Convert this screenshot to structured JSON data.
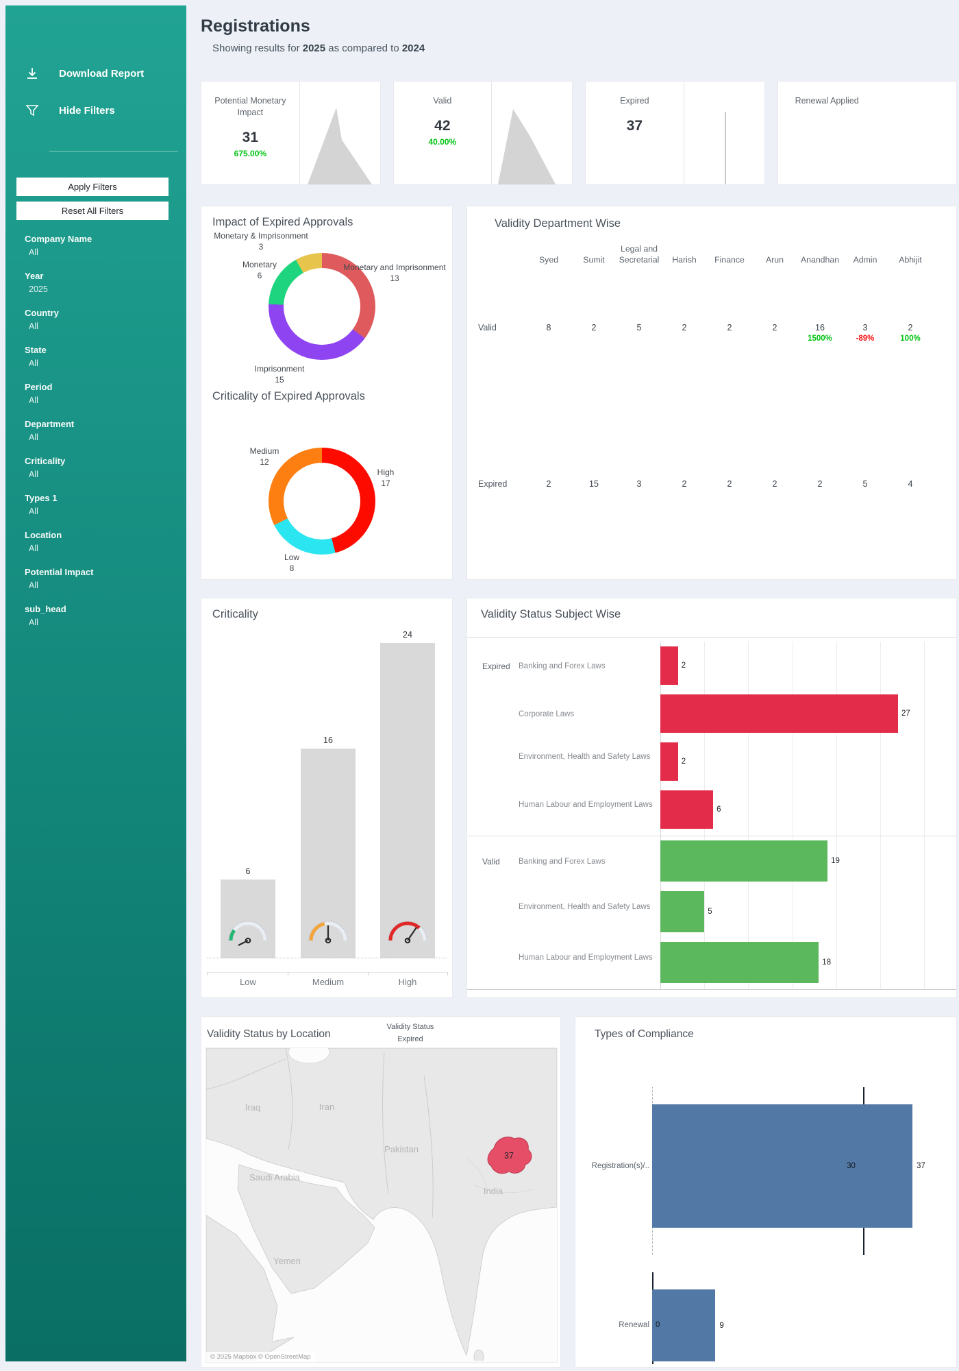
{
  "sidebar": {
    "menu": [
      {
        "label": "Download Report",
        "icon": "download-icon"
      },
      {
        "label": "Hide Filters",
        "icon": "filter-icon"
      }
    ],
    "apply_label": "Apply Filters",
    "reset_label": "Reset All Filters",
    "filters": [
      {
        "label": "Company Name",
        "value": "All"
      },
      {
        "label": "Year",
        "value": "2025"
      },
      {
        "label": "Country",
        "value": "All"
      },
      {
        "label": "State",
        "value": "All"
      },
      {
        "label": "Period",
        "value": "All"
      },
      {
        "label": "Department",
        "value": "All"
      },
      {
        "label": "Criticality",
        "value": "All"
      },
      {
        "label": "Types 1",
        "value": "All"
      },
      {
        "label": "Location",
        "value": "All"
      },
      {
        "label": "Potential Impact",
        "value": "All"
      },
      {
        "label": "sub_head",
        "value": "All"
      }
    ]
  },
  "header": {
    "title": "Registrations",
    "subtitle": {
      "prefix": "Showing results for ",
      "year_current": "2025",
      "middle": " as compared to ",
      "year_previous": "2024"
    }
  },
  "kpis": [
    {
      "title": "Potential Monetary Impact",
      "value": "31",
      "delta": "675.00%",
      "delta_color": "#00c413",
      "spark": "area-peak"
    },
    {
      "title": "Valid",
      "value": "42",
      "delta": "40.00%",
      "delta_color": "#00c413",
      "spark": "area-slope"
    },
    {
      "title": "Expired",
      "value": "37",
      "delta": "",
      "delta_color": "",
      "spark": "line-spike"
    },
    {
      "title": "Renewal Applied",
      "value": "",
      "delta": "",
      "delta_color": "",
      "spark": "none"
    }
  ],
  "chart_data": [
    {
      "id": "impact-of-expired-approvals",
      "type": "pie",
      "title": "Impact of Expired Approvals",
      "segments": [
        {
          "label": "Monetary and Imprisonment",
          "value": 13,
          "color": "#df5a5c"
        },
        {
          "label": "Imprisonment",
          "value": 15,
          "color": "#8e44f0"
        },
        {
          "label": "Monetary",
          "value": 6,
          "color": "#1ed47e"
        },
        {
          "label": "Monetary & Imprisonment",
          "value": 3,
          "color": "#e7c44b"
        }
      ]
    },
    {
      "id": "criticality-of-expired-approvals",
      "type": "pie",
      "title": "Criticality of Expired Approvals",
      "segments": [
        {
          "label": "High",
          "value": 17,
          "color": "#fe0b00"
        },
        {
          "label": "Low",
          "value": 8,
          "color": "#2be5f0"
        },
        {
          "label": "Medium",
          "value": 12,
          "color": "#fd7f11"
        }
      ]
    },
    {
      "id": "criticality-bars",
      "type": "bar",
      "title": "Criticality",
      "categories": [
        "Low",
        "Medium",
        "High"
      ],
      "values": [
        6,
        16,
        24
      ],
      "bar_color": "#d9d9d9",
      "ylim": [
        0,
        24
      ]
    },
    {
      "id": "validity-status-subject-wise",
      "type": "bar-horizontal",
      "title": "Validity Status Subject Wise",
      "axis_max": 32,
      "gridline_step": 5,
      "groups": [
        {
          "name": "Expired",
          "color": "#e32b4a",
          "rows": [
            {
              "label": "Banking and Forex Laws",
              "value": 2
            },
            {
              "label": "Corporate Laws",
              "value": 27
            },
            {
              "label": "Environment, Health and Safety Laws",
              "value": 2
            },
            {
              "label": "Human Labour and Employment Laws",
              "value": 6
            }
          ]
        },
        {
          "name": "Valid",
          "color": "#5cb85c",
          "rows": [
            {
              "label": "Banking and Forex Laws",
              "value": 19
            },
            {
              "label": "Environment, Health and Safety Laws",
              "value": 5
            },
            {
              "label": "Human Labour and Employment Laws",
              "value": 18
            }
          ]
        }
      ]
    },
    {
      "id": "validity-department-wise",
      "type": "table",
      "title": "Validity Department Wise",
      "columns": [
        "Syed",
        "Sumit",
        "Legal and Secretarial",
        "Harish",
        "Finance",
        "Arun",
        "Anandhan",
        "Admin",
        "Abhijit"
      ],
      "rows": [
        {
          "label": "Valid",
          "values": [
            "8",
            "2",
            "5",
            "2",
            "2",
            "2",
            "16",
            "3",
            "2"
          ],
          "deltas": [
            "",
            "",
            "",
            "",
            "",
            "",
            "1500%",
            "-89%",
            "100%"
          ],
          "delta_colors": [
            "",
            "",
            "",
            "",
            "",
            "",
            "#00c413",
            "#fb1414",
            "#00c413"
          ]
        },
        {
          "label": "Expired",
          "values": [
            "2",
            "15",
            "3",
            "2",
            "2",
            "2",
            "2",
            "5",
            "4"
          ],
          "deltas": [
            "",
            "",
            "",
            "",
            "",
            "",
            "",
            "",
            ""
          ],
          "delta_colors": [
            "",
            "",
            "",
            "",
            "",
            "",
            "",
            "",
            ""
          ]
        }
      ]
    },
    {
      "id": "validity-status-by-location",
      "type": "map",
      "title": "Validity Status by Location",
      "legend_title": "Validity Status",
      "legend_value": "Expired",
      "highlight": {
        "value": "37",
        "color": "#e64e67"
      },
      "country_labels": [
        "Iraq",
        "Iran",
        "Pakistan",
        "Saudi Arabia",
        "Yemen",
        "India"
      ],
      "attribution": "© 2025 Mapbox © OpenStreetMap"
    },
    {
      "id": "types-of-compliance",
      "type": "bar-horizontal",
      "title": "Types of Compliance",
      "bar_color": "#5279a6",
      "rows": [
        {
          "label": "Registration(s)/..",
          "value": 37,
          "reference": 30
        },
        {
          "label": "Renewal",
          "value": 9,
          "reference": 0
        }
      ]
    }
  ]
}
